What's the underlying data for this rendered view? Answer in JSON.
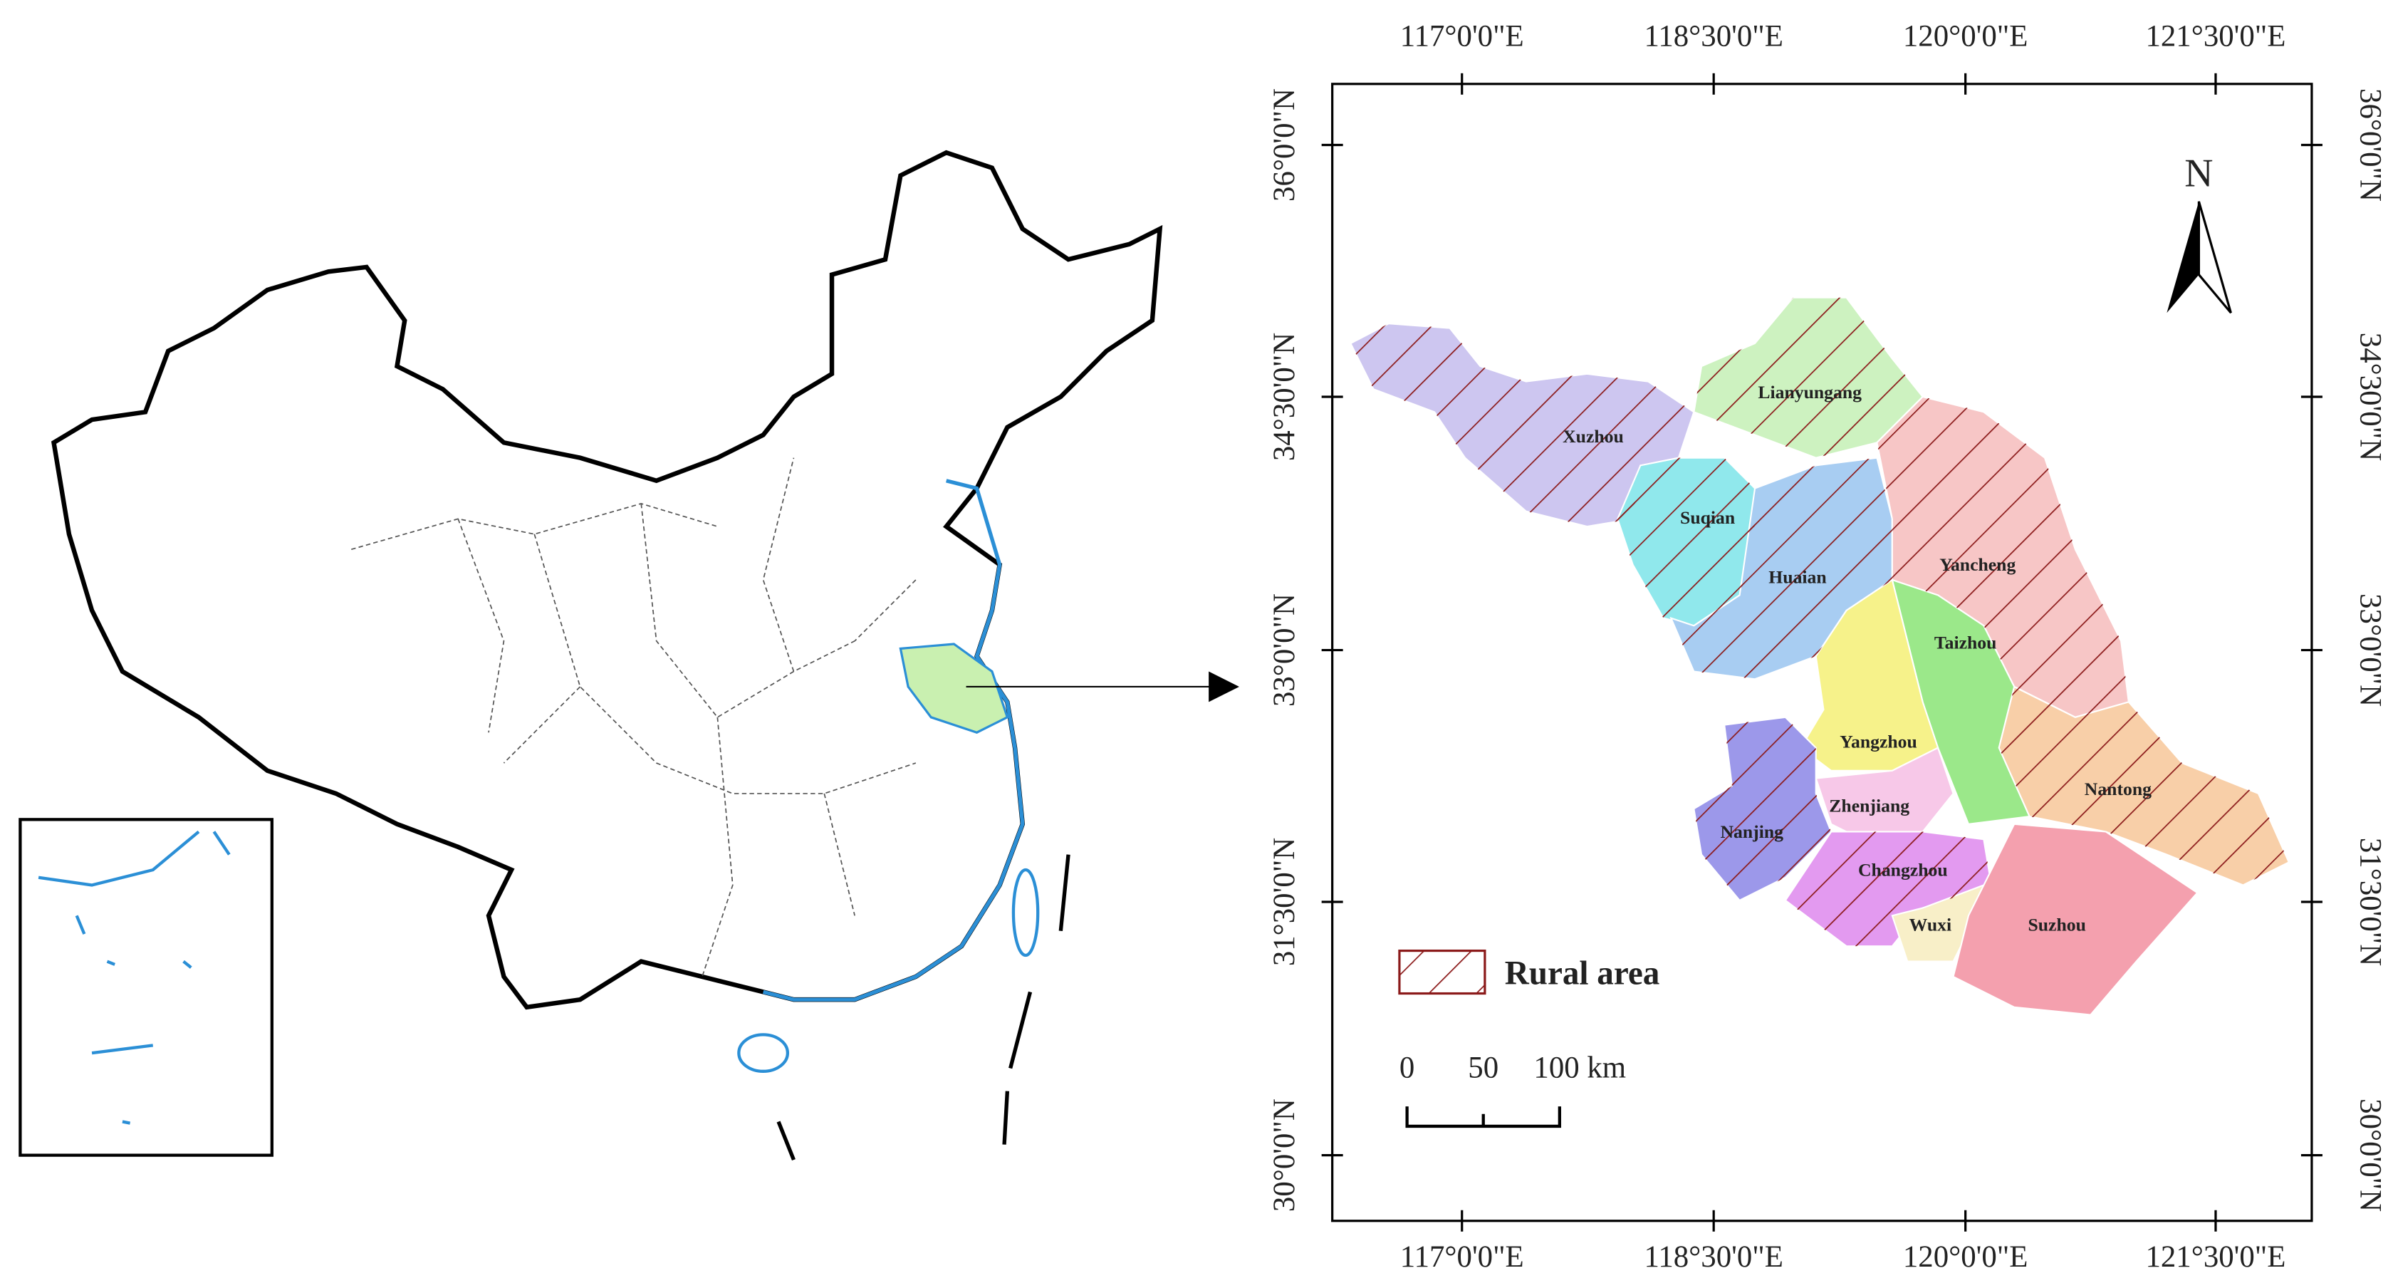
{
  "map": {
    "lon_labels": [
      "117°0'0\"E",
      "118°30'0\"E",
      "120°0'0\"E",
      "121°30'0\"E"
    ],
    "lat_labels": [
      "36°0'0\"N",
      "34°30'0\"N",
      "33°0'0\"N",
      "31°30'0\"N",
      "30°0'0\"N"
    ],
    "cities": [
      "Lianyungang",
      "Xuzhou",
      "Suqian",
      "Huaian",
      "Yancheng",
      "Taizhou",
      "Yangzhou",
      "Zhenjiang",
      "Nanjing",
      "Nantong",
      "Changzhou",
      "Wuxi",
      "Suzhou"
    ],
    "legend": "Rural area",
    "scale_labels": [
      "0",
      "50",
      "100 km"
    ],
    "north": "N"
  }
}
